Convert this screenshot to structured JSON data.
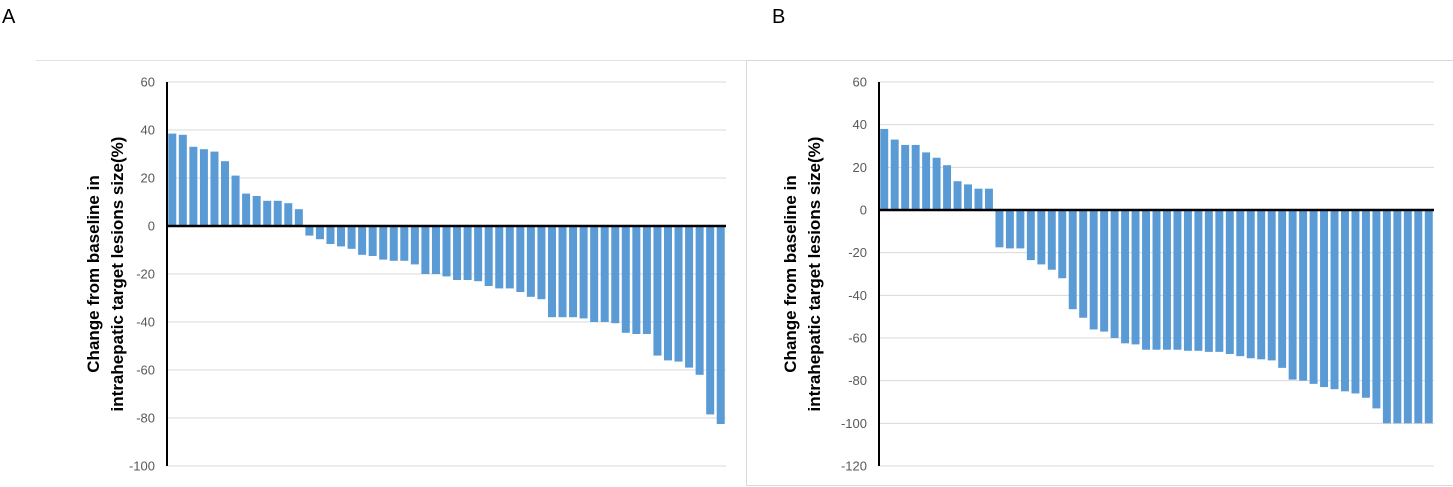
{
  "panels": [
    {
      "letter": "A"
    },
    {
      "letter": "B"
    }
  ],
  "colors": {
    "bar": "#5b9bd5",
    "grid": "#d9d9d9",
    "axis": "#000000",
    "tick_text": "#595959"
  },
  "chart_data": [
    {
      "type": "bar",
      "panel": "A",
      "title": "",
      "xlabel": "",
      "ylabel_lines": [
        "Change from baseline in",
        "intrahepatic target lesions size(%)"
      ],
      "ylim": [
        -100,
        60
      ],
      "yticks": [
        60,
        40,
        20,
        0,
        -20,
        -40,
        -60,
        -80,
        -100
      ],
      "grid": true,
      "values": [
        38.5,
        38,
        33,
        32,
        31,
        27,
        21,
        13.5,
        12.5,
        10.5,
        10.5,
        9.5,
        7,
        -4,
        -5.5,
        -7.5,
        -8.5,
        -9.5,
        -12,
        -12.5,
        -14,
        -14.5,
        -14.5,
        -16,
        -20,
        -20,
        -21,
        -22.5,
        -22.5,
        -23,
        -25,
        -26,
        -26,
        -27.5,
        -29.5,
        -30.5,
        -38,
        -38,
        -38,
        -38.5,
        -40,
        -40,
        -40.5,
        -44.5,
        -45,
        -45,
        -54,
        -56,
        -56.5,
        -59,
        -62,
        -78.5,
        -82.5
      ]
    },
    {
      "type": "bar",
      "panel": "B",
      "title": "",
      "xlabel": "",
      "ylabel_lines": [
        "Change from baseline in",
        "intrahepatic target lesions size(%)"
      ],
      "ylim": [
        -120,
        60
      ],
      "yticks": [
        60,
        40,
        20,
        0,
        -20,
        -40,
        -60,
        -80,
        -100,
        -120
      ],
      "grid": true,
      "values": [
        38,
        33,
        30.5,
        30.5,
        27,
        24.5,
        21,
        13.5,
        12,
        10,
        10,
        -17.5,
        -18,
        -18,
        -23.5,
        -25.5,
        -28,
        -32,
        -46.5,
        -50.5,
        -56,
        -57,
        -60,
        -62.5,
        -63,
        -65.5,
        -65.5,
        -65.5,
        -65.5,
        -66,
        -66,
        -66.5,
        -66.5,
        -67.5,
        -68.5,
        -69.5,
        -70,
        -70.5,
        -74,
        -79.5,
        -80,
        -81.5,
        -83,
        -84,
        -85,
        -86,
        -88,
        -93,
        -100,
        -100,
        -100,
        -100,
        -100
      ]
    }
  ]
}
